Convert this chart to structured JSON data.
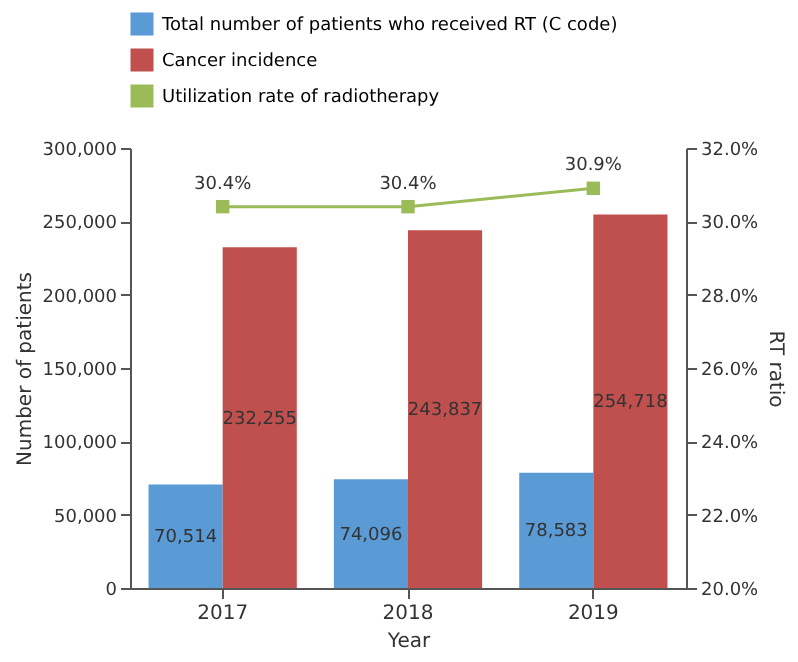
{
  "chart_data": {
    "type": "bar",
    "categories": [
      "2017",
      "2018",
      "2019"
    ],
    "xlabel": "Year",
    "ylabel": "Number of patients",
    "y2label": "RT ratio",
    "series": [
      {
        "name": "Total number of patients who received RT (C code)",
        "color": "#5b9bd5",
        "values": [
          70514,
          74096,
          78583
        ],
        "value_labels": [
          "70,514",
          "74,096",
          "78,583"
        ]
      },
      {
        "name": "Cancer incidence",
        "color": "#c0504d",
        "values": [
          232255,
          243837,
          254718
        ],
        "value_labels": [
          "232,255",
          "243,837",
          "254,718"
        ]
      },
      {
        "name": "Utilization rate of radiotherapy",
        "type": "line",
        "axis": "y2",
        "color": "#9bbb59",
        "marker": "square",
        "values": [
          30.4,
          30.4,
          30.9
        ],
        "value_labels": [
          "30.4%",
          "30.4%",
          "30.9%"
        ]
      }
    ],
    "ylim": [
      0,
      300000
    ],
    "yticks": [
      0,
      {
        "value": 50000,
        "label": "50,000"
      },
      {
        "value": 100000,
        "label": "100,000"
      },
      {
        "value": 150000,
        "label": "150,000"
      },
      {
        "value": 200000,
        "label": "200,000"
      },
      {
        "value": 250000,
        "label": "250,000"
      },
      {
        "value": 300000,
        "label": "300,000"
      }
    ],
    "y2lim": [
      20,
      32
    ],
    "y2ticks": [
      {
        "value": 20,
        "label": "20.0%"
      },
      {
        "value": 22,
        "label": "22.0%"
      },
      {
        "value": 24,
        "label": "24.0%"
      },
      {
        "value": 26,
        "label": "26.0%"
      },
      {
        "value": 28,
        "label": "28.0%"
      },
      {
        "value": 30,
        "label": "30.0%"
      },
      {
        "value": 32,
        "label": "32.0%"
      }
    ],
    "legend": "top",
    "grid": false
  }
}
